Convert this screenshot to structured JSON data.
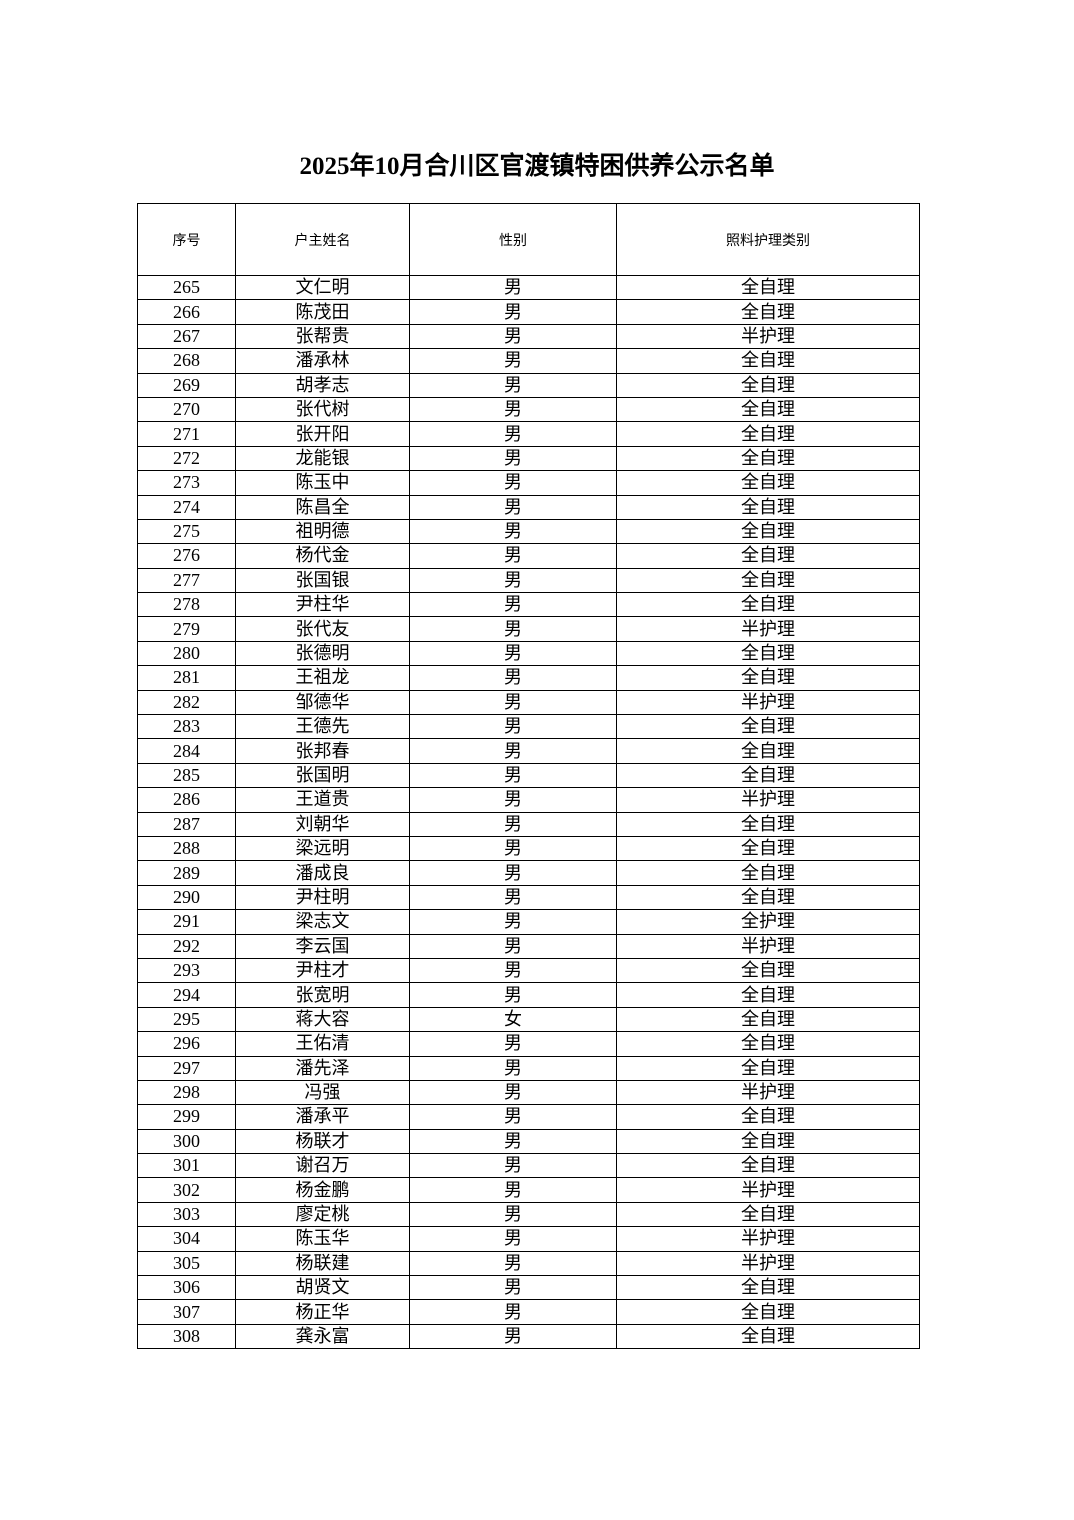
{
  "title": "2025年10月合川区官渡镇特困供养公示名单",
  "headers": [
    "序号",
    "户主姓名",
    "性别",
    "照料护理类别"
  ],
  "rows": [
    [
      "265",
      "文仁明",
      "男",
      "全自理"
    ],
    [
      "266",
      "陈茂田",
      "男",
      "全自理"
    ],
    [
      "267",
      "张帮贵",
      "男",
      "半护理"
    ],
    [
      "268",
      "潘承林",
      "男",
      "全自理"
    ],
    [
      "269",
      "胡孝志",
      "男",
      "全自理"
    ],
    [
      "270",
      "张代树",
      "男",
      "全自理"
    ],
    [
      "271",
      "张开阳",
      "男",
      "全自理"
    ],
    [
      "272",
      "龙能银",
      "男",
      "全自理"
    ],
    [
      "273",
      "陈玉中",
      "男",
      "全自理"
    ],
    [
      "274",
      "陈昌全",
      "男",
      "全自理"
    ],
    [
      "275",
      "祖明德",
      "男",
      "全自理"
    ],
    [
      "276",
      "杨代金",
      "男",
      "全自理"
    ],
    [
      "277",
      "张国银",
      "男",
      "全自理"
    ],
    [
      "278",
      "尹柱华",
      "男",
      "全自理"
    ],
    [
      "279",
      "张代友",
      "男",
      "半护理"
    ],
    [
      "280",
      "张德明",
      "男",
      "全自理"
    ],
    [
      "281",
      "王祖龙",
      "男",
      "全自理"
    ],
    [
      "282",
      "邹德华",
      "男",
      "半护理"
    ],
    [
      "283",
      "王德先",
      "男",
      "全自理"
    ],
    [
      "284",
      "张邦春",
      "男",
      "全自理"
    ],
    [
      "285",
      "张国明",
      "男",
      "全自理"
    ],
    [
      "286",
      "王道贵",
      "男",
      "半护理"
    ],
    [
      "287",
      "刘朝华",
      "男",
      "全自理"
    ],
    [
      "288",
      "梁远明",
      "男",
      "全自理"
    ],
    [
      "289",
      "潘成良",
      "男",
      "全自理"
    ],
    [
      "290",
      "尹柱明",
      "男",
      "全自理"
    ],
    [
      "291",
      "梁志文",
      "男",
      "全护理"
    ],
    [
      "292",
      "李云国",
      "男",
      "半护理"
    ],
    [
      "293",
      "尹柱才",
      "男",
      "全自理"
    ],
    [
      "294",
      "张宽明",
      "男",
      "全自理"
    ],
    [
      "295",
      "蒋大容",
      "女",
      "全自理"
    ],
    [
      "296",
      "王佑清",
      "男",
      "全自理"
    ],
    [
      "297",
      "潘先泽",
      "男",
      "全自理"
    ],
    [
      "298",
      "冯强",
      "男",
      "半护理"
    ],
    [
      "299",
      "潘承平",
      "男",
      "全自理"
    ],
    [
      "300",
      "杨联才",
      "男",
      "全自理"
    ],
    [
      "301",
      "谢召万",
      "男",
      "全自理"
    ],
    [
      "302",
      "杨金鹏",
      "男",
      "半护理"
    ],
    [
      "303",
      "廖定桃",
      "男",
      "全自理"
    ],
    [
      "304",
      "陈玉华",
      "男",
      "半护理"
    ],
    [
      "305",
      "杨联建",
      "男",
      "半护理"
    ],
    [
      "306",
      "胡贤文",
      "男",
      "全自理"
    ],
    [
      "307",
      "杨正华",
      "男",
      "全自理"
    ],
    [
      "308",
      "龚永富",
      "男",
      "全自理"
    ]
  ]
}
